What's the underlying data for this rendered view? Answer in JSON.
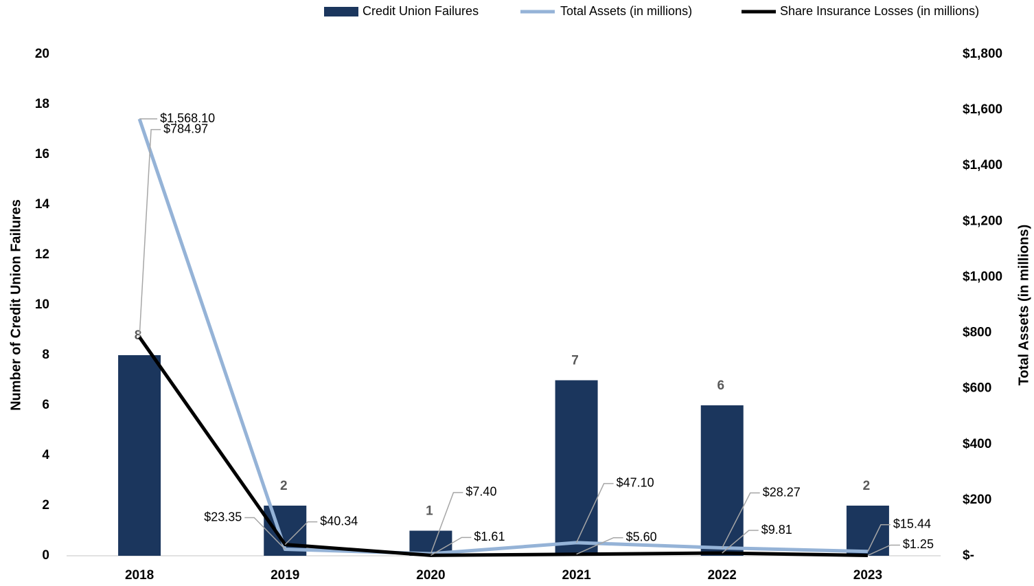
{
  "chart_data": {
    "type": "bar+line",
    "categories": [
      "2018",
      "2019",
      "2020",
      "2021",
      "2022",
      "2023"
    ],
    "series": [
      {
        "name": "Credit Union Failures",
        "type": "bar",
        "color": "#1b365d",
        "axis": "y",
        "values": [
          8,
          2,
          1,
          7,
          6,
          2
        ]
      },
      {
        "name": "Total Assets (in millions)",
        "type": "line",
        "color": "#95b3d7",
        "axis": "y2",
        "values": [
          1568.1,
          23.35,
          7.4,
          47.1,
          28.27,
          15.44
        ],
        "value_labels": [
          "$1,568.10",
          "$23.35",
          "$7.40",
          "$47.10",
          "$28.27",
          "$15.44"
        ]
      },
      {
        "name": "Share Insurance Losses (in millions)",
        "type": "line",
        "color": "#000000",
        "axis": "y2",
        "values": [
          784.97,
          40.34,
          1.61,
          5.6,
          9.81,
          1.25
        ],
        "value_labels": [
          "$784.97",
          "$40.34",
          "$1.61",
          "$5.60",
          "$9.81",
          "$1.25"
        ]
      }
    ],
    "y_label": "Number of Credit Union Failures",
    "y2_label": "Total Assets (in millions)",
    "ylim": [
      0,
      20
    ],
    "yticks": [
      0,
      2,
      4,
      6,
      8,
      10,
      12,
      14,
      16,
      18,
      20
    ],
    "y2lim": [
      0,
      1800
    ],
    "y2ticks": [
      {
        "value": 0,
        "label": "$-"
      },
      {
        "value": 200,
        "label": "$200"
      },
      {
        "value": 400,
        "label": "$400"
      },
      {
        "value": 600,
        "label": "$600"
      },
      {
        "value": 800,
        "label": "$800"
      },
      {
        "value": 1000,
        "label": "$1,000"
      },
      {
        "value": 1200,
        "label": "$1,200"
      },
      {
        "value": 1400,
        "label": "$1,400"
      },
      {
        "value": 1600,
        "label": "$1,600"
      },
      {
        "value": 1800,
        "label": "$1,800"
      }
    ],
    "legend": "top"
  }
}
